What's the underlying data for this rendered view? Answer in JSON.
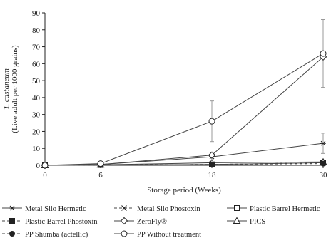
{
  "chart_data": {
    "type": "line",
    "x": [
      0,
      6,
      18,
      30
    ],
    "xticks": [
      "0",
      "6",
      "18",
      "30"
    ],
    "xlabel": "Storage period (Weeks)",
    "ylabel_line1": "T. castaneum",
    "ylabel_line2": "(Live adult per 1000 grains)",
    "ylim": [
      0,
      90
    ],
    "yticks": [
      0,
      10,
      20,
      30,
      40,
      50,
      60,
      70,
      80,
      90
    ],
    "grid": false,
    "legend_placement": "bottom",
    "series": [
      {
        "name": "Metal Silo Hermetic",
        "marker": "star",
        "dash": false,
        "values": [
          0,
          0.5,
          5,
          13
        ],
        "err": [
          0,
          0,
          0,
          6
        ]
      },
      {
        "name": "Metal Silo Phostoxin",
        "marker": "x",
        "dash": true,
        "values": [
          0,
          0.2,
          0.5,
          1.5
        ],
        "err": [
          0,
          0,
          0,
          0
        ]
      },
      {
        "name": "Plastic Barrel Hermetic",
        "marker": "square-open",
        "dash": false,
        "values": [
          0,
          0.2,
          0.5,
          1.5
        ],
        "err": [
          0,
          0,
          0,
          0
        ]
      },
      {
        "name": "Plastic Barrel Phostoxin",
        "marker": "square-filled",
        "dash": true,
        "values": [
          0,
          0.2,
          0.5,
          1.5
        ],
        "err": [
          0,
          0,
          0,
          0
        ]
      },
      {
        "name": "ZeroFly®",
        "marker": "diamond-open",
        "dash": false,
        "values": [
          0,
          0.5,
          6,
          64
        ],
        "err": [
          0,
          0,
          0,
          0
        ]
      },
      {
        "name": "PICS",
        "marker": "triangle-open",
        "dash": false,
        "values": [
          0,
          0.3,
          1.5,
          2
        ],
        "err": [
          0,
          0,
          0,
          0
        ]
      },
      {
        "name": "PP Shumba (actellic)",
        "marker": "circle-filled",
        "dash": true,
        "values": [
          0,
          0.2,
          0.5,
          1
        ],
        "err": [
          0,
          0,
          0,
          0
        ]
      },
      {
        "name": "PP Without treatment",
        "marker": "circle-open",
        "dash": false,
        "values": [
          0,
          1,
          26,
          66
        ],
        "err": [
          0,
          0,
          12,
          20
        ]
      }
    ]
  }
}
